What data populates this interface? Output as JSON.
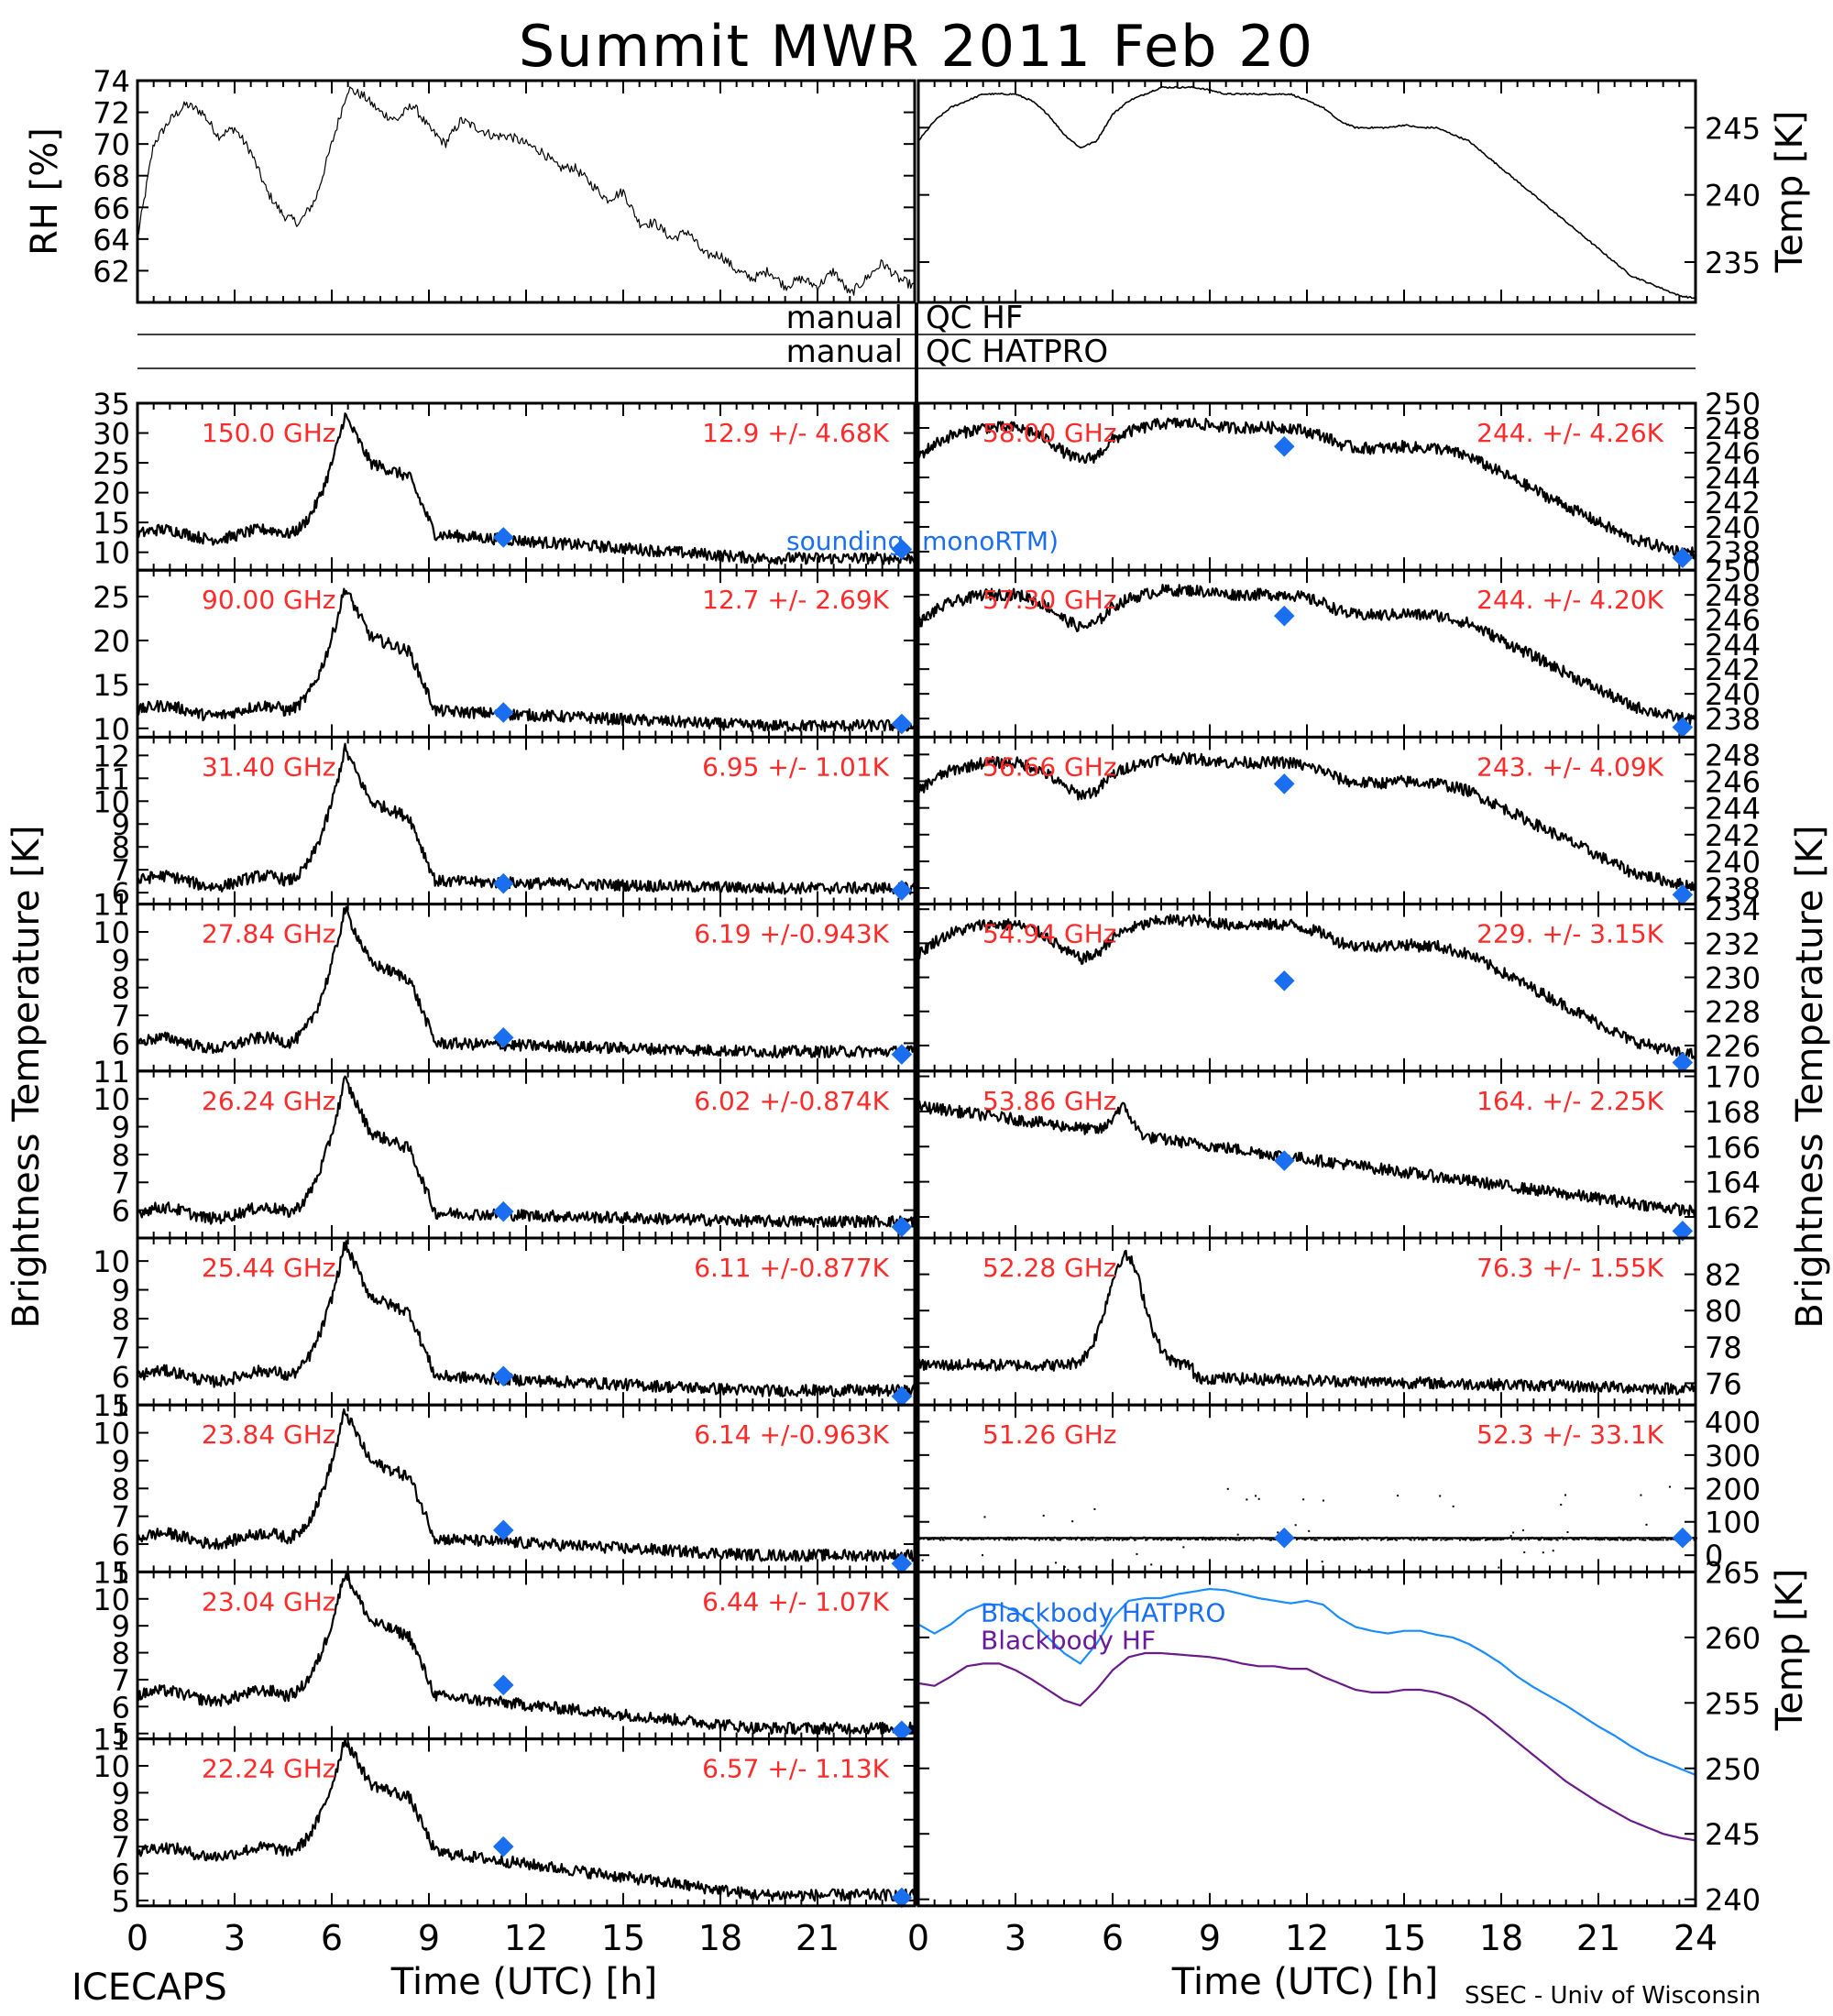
{
  "figure": {
    "title": "Summit MWR 2011 Feb 20",
    "footer_left": "ICECAPS",
    "footer_right": "SSEC - Univ of Wisconsin",
    "x_axis_label": "Time (UTC) [h]",
    "left_ylabel": "Brightness Temperature [K]",
    "right_ylabel": "Brightness Temperature [K]",
    "colors": {
      "red_text": "#ff2a2a",
      "sounding": "#1a6ef0",
      "hatpro": "#1a8cff",
      "hf": "#6a1a8a"
    }
  },
  "qc_rows": [
    {
      "left": "manual",
      "right": "QC HF"
    },
    {
      "left": "manual",
      "right": "QC HATPRO"
    }
  ],
  "chart_data": [
    {
      "type": "line",
      "id": "rh",
      "title": "",
      "xlabel": "Time (UTC) [h]",
      "ylabel": "RH [%]",
      "xlim": [
        0,
        24
      ],
      "ylim": [
        60,
        74
      ],
      "yticks": [
        62,
        64,
        66,
        68,
        70,
        72,
        74
      ],
      "x": [
        0,
        0.5,
        1,
        1.5,
        2,
        2.5,
        3,
        3.5,
        4,
        4.5,
        5,
        5.5,
        6,
        6.5,
        7,
        7.5,
        8,
        8.5,
        9,
        9.5,
        10,
        10.5,
        11,
        11.5,
        12,
        12.5,
        13,
        13.5,
        14,
        14.5,
        15,
        15.5,
        16,
        16.5,
        17,
        17.5,
        18,
        18.5,
        19,
        19.5,
        20,
        20.5,
        21,
        21.5,
        22,
        22.5,
        23,
        23.5,
        24
      ],
      "series": [
        {
          "values": [
            64,
            70,
            71.5,
            72.5,
            72,
            70.5,
            71,
            69.5,
            67,
            65.5,
            65,
            66.5,
            70,
            73.5,
            73,
            72,
            71.5,
            72.5,
            71,
            70,
            71.5,
            71,
            70.5,
            70.5,
            70,
            69.5,
            68.5,
            68.5,
            67.5,
            66.5,
            67,
            65,
            65,
            64,
            64.5,
            63,
            63,
            62,
            61.5,
            62,
            61,
            61.5,
            61,
            62,
            60.5,
            61.5,
            62.5,
            61.5,
            61
          ]
        }
      ]
    },
    {
      "type": "line",
      "id": "temp",
      "title": "",
      "xlabel": "Time (UTC) [h]",
      "ylabel": "Temp [K]",
      "xlim": [
        0,
        24
      ],
      "ylim": [
        232,
        248.5
      ],
      "yticks": [
        235,
        240,
        245
      ],
      "x": [
        0,
        0.5,
        1,
        1.5,
        2,
        2.5,
        3,
        3.5,
        4,
        4.5,
        5,
        5.5,
        6,
        6.5,
        7,
        7.5,
        8,
        8.5,
        9,
        9.5,
        10,
        10.5,
        11,
        11.5,
        12,
        12.5,
        13,
        13.5,
        14,
        14.5,
        15,
        15.5,
        16,
        16.5,
        17,
        17.5,
        18,
        18.5,
        19,
        19.5,
        20,
        20.5,
        21,
        21.5,
        22,
        22.5,
        23,
        23.5,
        24
      ],
      "series": [
        {
          "values": [
            244,
            245.5,
            246.5,
            247,
            247.5,
            247.5,
            247.5,
            247,
            246,
            244.5,
            243.5,
            244,
            246,
            247,
            247.5,
            248,
            248,
            248,
            247.8,
            247.5,
            247.5,
            247.5,
            247.5,
            247.5,
            247,
            246.5,
            245.5,
            245,
            245,
            245,
            245.2,
            245,
            245,
            244.5,
            244,
            243,
            242,
            241,
            240,
            239,
            238,
            237,
            236,
            235,
            234,
            233.5,
            233,
            232.5,
            232.3
          ]
        }
      ]
    },
    {
      "type": "line",
      "id": "L0",
      "title": "150.0 GHz",
      "stats": "12.9 +/- 4.68K",
      "ylim": [
        7,
        35
      ],
      "yticks": [
        10,
        15,
        20,
        25,
        30,
        35
      ],
      "profile": "hf",
      "base": 13,
      "peak": 33,
      "decay": 9,
      "sounding": [
        12.5,
        10.5
      ],
      "note": "sounding (monoRTM)"
    },
    {
      "type": "line",
      "id": "L1",
      "title": "90.00 GHz",
      "stats": "12.7 +/- 2.69K",
      "ylim": [
        9,
        28
      ],
      "yticks": [
        10,
        15,
        20,
        25
      ],
      "profile": "hf",
      "base": 12,
      "peak": 26,
      "decay": 10.3,
      "sounding": [
        11.8,
        10.5
      ]
    },
    {
      "type": "line",
      "id": "L2",
      "title": "31.40 GHz",
      "stats": "6.95 +/- 1.01K",
      "ylim": [
        5.5,
        12.8
      ],
      "yticks": [
        6,
        7,
        8,
        9,
        10,
        11,
        12
      ],
      "profile": "k",
      "base": 6.5,
      "peak": 12.3,
      "decay": 6.2,
      "sounding": [
        6.4,
        6.1
      ]
    },
    {
      "type": "line",
      "id": "L3",
      "title": "27.84 GHz",
      "stats": "6.19 +/-0.943K",
      "ylim": [
        5,
        11
      ],
      "yticks": [
        6,
        7,
        8,
        9,
        10,
        11
      ],
      "profile": "k",
      "base": 6,
      "peak": 10.8,
      "decay": 5.7,
      "sounding": [
        6.2,
        5.6
      ]
    },
    {
      "type": "line",
      "id": "L4",
      "title": "26.24 GHz",
      "stats": "6.02 +/-0.874K",
      "ylim": [
        5,
        11
      ],
      "yticks": [
        6,
        7,
        8,
        9,
        10,
        11
      ],
      "profile": "k",
      "base": 5.9,
      "peak": 10.7,
      "decay": 5.6,
      "sounding": [
        5.95,
        5.4
      ]
    },
    {
      "type": "line",
      "id": "L5",
      "title": "25.44 GHz",
      "stats": "6.11 +/-0.877K",
      "ylim": [
        5,
        10.8
      ],
      "yticks": [
        5,
        6,
        7,
        8,
        9,
        10
      ],
      "profile": "k",
      "base": 6,
      "peak": 10.6,
      "decay": 5.5,
      "sounding": [
        6.0,
        5.3
      ]
    },
    {
      "type": "line",
      "id": "L6",
      "title": "23.84 GHz",
      "stats": "6.14 +/-0.963K",
      "ylim": [
        5,
        11
      ],
      "yticks": [
        5,
        6,
        7,
        8,
        9,
        10,
        11
      ],
      "profile": "k",
      "base": 6.2,
      "peak": 10.8,
      "decay": 5.6,
      "sounding": [
        6.5,
        5.3
      ]
    },
    {
      "type": "line",
      "id": "L7",
      "title": "23.04 GHz",
      "stats": "6.44 +/- 1.07K",
      "ylim": [
        4.8,
        11
      ],
      "yticks": [
        5,
        6,
        7,
        8,
        9,
        10,
        11
      ],
      "profile": "k",
      "base": 6.4,
      "peak": 11,
      "decay": 5.2,
      "sounding": [
        6.8,
        5.1
      ]
    },
    {
      "type": "line",
      "id": "L8",
      "title": "22.24 GHz",
      "stats": "6.57 +/- 1.13K",
      "ylim": [
        4.8,
        11
      ],
      "yticks": [
        5,
        6,
        7,
        8,
        9,
        10,
        11
      ],
      "profile": "k",
      "base": 6.8,
      "peak": 11,
      "decay": 5.2,
      "sounding": [
        7.0,
        5.1
      ]
    },
    {
      "type": "line",
      "id": "R0",
      "title": "58.00 GHz",
      "stats": "244. +/- 4.26K",
      "ylim": [
        236.5,
        250
      ],
      "yticks": [
        238,
        240,
        242,
        244,
        246,
        248,
        250
      ],
      "profile": "temp",
      "sounding": [
        246.5,
        237.5
      ]
    },
    {
      "type": "line",
      "id": "R1",
      "title": "57.30 GHz",
      "stats": "244. +/- 4.20K",
      "ylim": [
        236.5,
        250
      ],
      "yticks": [
        238,
        240,
        242,
        244,
        246,
        248,
        250
      ],
      "profile": "temp",
      "sounding": [
        246.3,
        237.3
      ]
    },
    {
      "type": "line",
      "id": "R2",
      "title": "56.66 GHz",
      "stats": "243. +/- 4.09K",
      "ylim": [
        236.8,
        249.3
      ],
      "yticks": [
        238,
        240,
        242,
        244,
        246,
        248
      ],
      "profile": "temp",
      "sounding": [
        245.8,
        237.5
      ]
    },
    {
      "type": "line",
      "id": "R3",
      "title": "54.94 GHz",
      "stats": "229. +/- 3.15K",
      "ylim": [
        224.5,
        234.3
      ],
      "yticks": [
        226,
        228,
        230,
        232,
        234
      ],
      "profile": "temp54",
      "sounding": [
        229.8,
        225
      ]
    },
    {
      "type": "line",
      "id": "R4",
      "title": "53.86 GHz",
      "stats": "164. +/- 2.25K",
      "ylim": [
        160.8,
        170.3
      ],
      "yticks": [
        162,
        164,
        166,
        168,
        170
      ],
      "profile": "w53",
      "sounding": [
        165.2,
        161.2
      ]
    },
    {
      "type": "line",
      "id": "R5",
      "title": "52.28 GHz",
      "stats": "76.3 +/- 1.55K",
      "ylim": [
        74.8,
        84
      ],
      "yticks": [
        76,
        78,
        80,
        82
      ],
      "profile": "w52",
      "sounding": null
    },
    {
      "type": "scatter",
      "id": "R6",
      "title": "51.26 GHz",
      "stats": "52.3 +/- 33.1K",
      "ylim": [
        -50,
        450
      ],
      "yticks": [
        0,
        100,
        200,
        300,
        400
      ],
      "profile": "flat",
      "sounding": [
        52,
        52
      ]
    },
    {
      "type": "line",
      "id": "bb",
      "title": "",
      "ylabel": "Temp [K]",
      "xlim": [
        0,
        24
      ],
      "ylim": [
        239.5,
        265
      ],
      "yticks": [
        240,
        245,
        250,
        255,
        260,
        265
      ],
      "x": [
        0,
        0.5,
        1,
        1.5,
        2,
        2.5,
        3,
        3.5,
        4,
        4.5,
        5,
        5.5,
        6,
        6.5,
        7,
        7.5,
        8,
        8.5,
        9,
        9.5,
        10,
        10.5,
        11,
        11.5,
        12,
        12.5,
        13,
        13.5,
        14,
        14.5,
        15,
        15.5,
        16,
        16.5,
        17,
        17.5,
        18,
        18.5,
        19,
        19.5,
        20,
        20.5,
        21,
        21.5,
        22,
        22.5,
        23,
        23.5,
        24
      ],
      "series": [
        {
          "name": "Blackbody HATPRO",
          "values": [
            261,
            260.3,
            261,
            262,
            262.5,
            262.5,
            262,
            261.2,
            260,
            258.8,
            258,
            259.5,
            261.5,
            262.8,
            263,
            263,
            263.3,
            263.5,
            263.7,
            263.6,
            263.3,
            263,
            262.8,
            262.6,
            262.8,
            262.5,
            261.5,
            260.8,
            260.5,
            260.3,
            260.5,
            260.5,
            260.2,
            260,
            259.5,
            258.8,
            258,
            257,
            256.2,
            255.5,
            254.8,
            254,
            253.2,
            252.5,
            251.7,
            251,
            250.5,
            250,
            249.5
          ]
        },
        {
          "name": "Blackbody HF",
          "values": [
            256.5,
            256.3,
            257,
            257.8,
            258,
            258,
            257.5,
            256.8,
            256,
            255.2,
            254.8,
            256,
            257.5,
            258.5,
            258.8,
            258.8,
            258.7,
            258.6,
            258.5,
            258.3,
            258,
            257.8,
            257.8,
            257.6,
            257.6,
            257,
            256.5,
            256,
            255.8,
            255.8,
            256,
            256,
            255.8,
            255.4,
            254.8,
            254,
            253,
            252,
            251,
            250,
            249,
            248.2,
            247.4,
            246.7,
            246,
            245.5,
            245,
            244.7,
            244.5
          ]
        }
      ]
    }
  ],
  "x_ticks": [
    "0",
    "3",
    "6",
    "9",
    "12",
    "15",
    "18",
    "21"
  ],
  "x_ticks_right": [
    "0",
    "3",
    "6",
    "9",
    "12",
    "15",
    "18",
    "21",
    "24"
  ]
}
